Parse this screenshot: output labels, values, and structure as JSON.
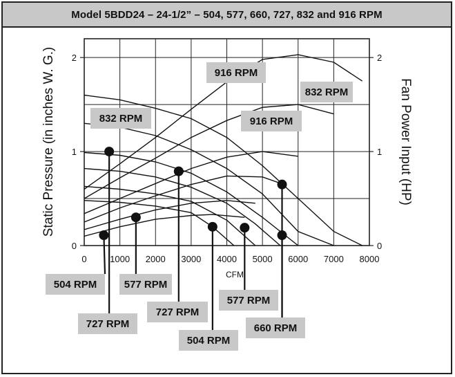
{
  "chart_data": {
    "type": "line",
    "title": "Model 5BDD24 – 24-1/2” – 504, 577, 660, 727, 832 and 916 RPM",
    "xlabel": "CFM",
    "ylabel": "Static Pressure (in inches W. G.)",
    "y2label": "Fan Power Input (HP)",
    "xlim": [
      0,
      8000
    ],
    "ylim": [
      0,
      2.2
    ],
    "y2lim": [
      0,
      2.2
    ],
    "x_ticks": [
      0,
      1000,
      2000,
      3000,
      4000,
      5000,
      6000,
      7000,
      8000
    ],
    "x_tick_labels": [
      "0",
      "1000",
      "2000",
      "3000",
      "4000",
      "5000",
      "6000",
      "7000",
      "8000"
    ],
    "y_ticks": [
      0,
      1,
      2
    ],
    "y_tick_labels": [
      "0",
      "1",
      "2"
    ],
    "y2_ticks": [
      0,
      1,
      2
    ],
    "y2_tick_labels": [
      "0",
      "1",
      "2"
    ],
    "grid": true,
    "pressure_curves": [
      {
        "rpm": 504,
        "x": [
          0,
          1000,
          2000,
          3000,
          3600,
          4200
        ],
        "y": [
          0.48,
          0.46,
          0.42,
          0.35,
          0.2,
          0.0
        ]
      },
      {
        "rpm": 577,
        "x": [
          0,
          1000,
          2000,
          3000,
          4000,
          4800
        ],
        "y": [
          0.63,
          0.6,
          0.55,
          0.47,
          0.27,
          0.0
        ]
      },
      {
        "rpm": 660,
        "x": [
          0,
          1000,
          2000,
          3000,
          4000,
          4800,
          5500
        ],
        "y": [
          0.82,
          0.79,
          0.73,
          0.62,
          0.45,
          0.23,
          0.0
        ]
      },
      {
        "rpm": 727,
        "x": [
          0,
          1000,
          2000,
          3000,
          4000,
          5000,
          6000
        ],
        "y": [
          0.99,
          0.96,
          0.89,
          0.77,
          0.57,
          0.3,
          0.0
        ]
      },
      {
        "rpm": 832,
        "x": [
          0,
          1000,
          2000,
          3000,
          4000,
          5000,
          6000,
          7000
        ],
        "y": [
          1.3,
          1.26,
          1.17,
          1.02,
          0.82,
          0.55,
          0.15,
          0.0
        ]
      },
      {
        "rpm": 916,
        "x": [
          0,
          1000,
          2000,
          3000,
          4000,
          5000,
          6000,
          7000,
          7800
        ],
        "y": [
          1.6,
          1.55,
          1.46,
          1.35,
          1.15,
          0.85,
          0.5,
          0.15,
          0.0
        ]
      }
    ],
    "power_curves": [
      {
        "rpm": 504,
        "x": [
          0,
          1000,
          2000,
          3000,
          3600,
          4500
        ],
        "y": [
          0.1,
          0.2,
          0.28,
          0.32,
          0.33,
          0.3
        ]
      },
      {
        "rpm": 577,
        "x": [
          0,
          1000,
          2000,
          3000,
          4000,
          4800
        ],
        "y": [
          0.17,
          0.28,
          0.38,
          0.45,
          0.48,
          0.45
        ]
      },
      {
        "rpm": 660,
        "x": [
          0,
          1000,
          2000,
          3000,
          4000,
          5000,
          5600
        ],
        "y": [
          0.25,
          0.4,
          0.53,
          0.65,
          0.74,
          0.73,
          0.65
        ]
      },
      {
        "rpm": 727,
        "x": [
          0,
          1000,
          2000,
          3000,
          4000,
          5000,
          6000
        ],
        "y": [
          0.34,
          0.5,
          0.66,
          0.82,
          0.94,
          1.0,
          0.95
        ]
      },
      {
        "rpm": 832,
        "x": [
          0,
          1000,
          2000,
          3000,
          4000,
          5000,
          6000,
          7000
        ],
        "y": [
          0.5,
          0.72,
          0.93,
          1.15,
          1.33,
          1.47,
          1.5,
          1.4
        ]
      },
      {
        "rpm": 916,
        "x": [
          0,
          1000,
          2000,
          3000,
          4000,
          5000,
          6000,
          7000,
          7800
        ],
        "y": [
          0.6,
          0.87,
          1.15,
          1.45,
          1.74,
          1.98,
          2.03,
          1.95,
          1.75
        ]
      }
    ],
    "markers": [
      {
        "x": 550,
        "y": 0.11
      },
      {
        "x": 700,
        "y": 1.0
      },
      {
        "x": 1450,
        "y": 0.3
      },
      {
        "x": 2650,
        "y": 0.79
      },
      {
        "x": 3600,
        "y": 0.2
      },
      {
        "x": 4500,
        "y": 0.19
      },
      {
        "x": 5550,
        "y": 0.65
      },
      {
        "x": 5550,
        "y": 0.11
      }
    ],
    "annotations": [
      {
        "text": "916 RPM"
      },
      {
        "text": "832 RPM"
      },
      {
        "text": "832 RPM"
      },
      {
        "text": "916 RPM"
      },
      {
        "text": "504 RPM"
      },
      {
        "text": "577 RPM"
      },
      {
        "text": "727 RPM"
      },
      {
        "text": "577 RPM"
      },
      {
        "text": "727 RPM"
      },
      {
        "text": "660 RPM"
      },
      {
        "text": "504 RPM"
      }
    ]
  },
  "colors": {
    "title_bar": "#c8c8c8",
    "callout_box": "#c8c8c8",
    "curve": "#111111",
    "grid": "#222222"
  }
}
